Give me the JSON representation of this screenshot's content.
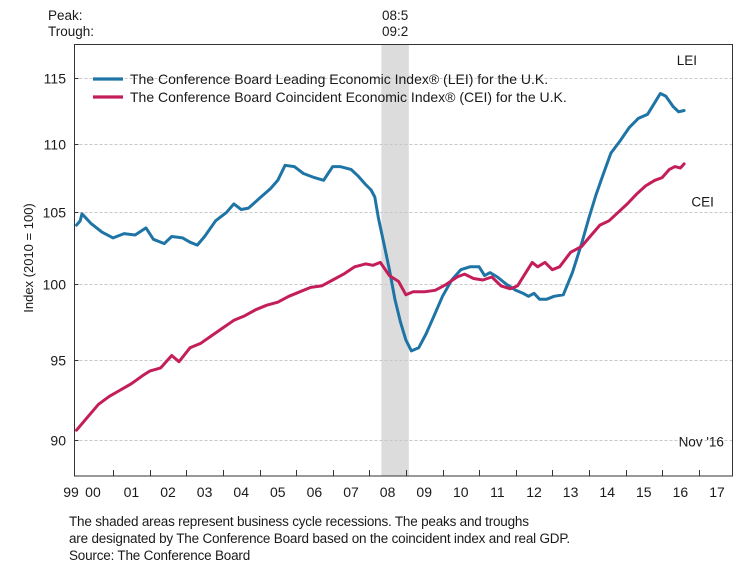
{
  "chart_data": {
    "type": "line",
    "title": "",
    "xlabel": "",
    "ylabel": "Index (2010 = 100)",
    "yscale": "log",
    "ylim": [
      88.2,
      118
    ],
    "xlim": [
      2000.0,
      2017.95
    ],
    "yticks": [
      90,
      95,
      100,
      105,
      110,
      115
    ],
    "ytick_labels": [
      "90",
      "95",
      "100",
      "105",
      "110",
      "115"
    ],
    "xtick_labels": [
      {
        "label": "99",
        "year": 1999.85
      },
      {
        "label": "00",
        "year": 2000.45
      },
      {
        "label": "01",
        "year": 2001.5
      },
      {
        "label": "02",
        "year": 2002.5
      },
      {
        "label": "03",
        "year": 2003.5
      },
      {
        "label": "04",
        "year": 2004.5
      },
      {
        "label": "05",
        "year": 2005.5
      },
      {
        "label": "06",
        "year": 2006.5
      },
      {
        "label": "07",
        "year": 2007.5
      },
      {
        "label": "08",
        "year": 2008.5
      },
      {
        "label": "09",
        "year": 2009.5
      },
      {
        "label": "10",
        "year": 2010.5
      },
      {
        "label": "11",
        "year": 2011.5
      },
      {
        "label": "12",
        "year": 2012.5
      },
      {
        "label": "13",
        "year": 2013.5
      },
      {
        "label": "14",
        "year": 2014.5
      },
      {
        "label": "15",
        "year": 2015.5
      },
      {
        "label": "16",
        "year": 2016.5
      },
      {
        "label": "17",
        "year": 2017.5
      }
    ],
    "xticks": [
      2001,
      2002,
      2003,
      2004,
      2005,
      2006,
      2007,
      2008,
      2009,
      2010,
      2011,
      2012,
      2013,
      2014,
      2015,
      2016,
      2017
    ],
    "grid": true,
    "legend_position": "top-left",
    "recessions": [
      {
        "start": 2008.33,
        "end": 2009.08,
        "peak_label": "08:5",
        "trough_label": "09:2"
      }
    ],
    "recession_header": {
      "peak": "Peak:",
      "trough": "Trough:"
    },
    "series": [
      {
        "name": "The Conference Board Leading Economic Index® (LEI) for the U.K.",
        "short_label": "LEI",
        "color": "#1f74a6",
        "x": [
          2000.0,
          2000.1,
          2000.15,
          2000.4,
          2000.7,
          2001.0,
          2001.3,
          2001.6,
          2001.9,
          2002.1,
          2002.4,
          2002.6,
          2002.9,
          2003.1,
          2003.3,
          2003.5,
          2003.8,
          2004.1,
          2004.3,
          2004.5,
          2004.7,
          2005.0,
          2005.3,
          2005.5,
          2005.7,
          2005.95,
          2006.2,
          2006.5,
          2006.75,
          2007.0,
          2007.2,
          2007.5,
          2007.7,
          2007.9,
          2008.05,
          2008.15,
          2008.25,
          2008.4,
          2008.55,
          2008.7,
          2008.85,
          2009.0,
          2009.15,
          2009.35,
          2009.55,
          2009.75,
          2010.0,
          2010.25,
          2010.5,
          2010.75,
          2011.0,
          2011.15,
          2011.3,
          2011.5,
          2011.75,
          2012.0,
          2012.2,
          2012.35,
          2012.5,
          2012.65,
          2012.85,
          2013.05,
          2013.3,
          2013.55,
          2013.8,
          2014.0,
          2014.2,
          2014.4,
          2014.6,
          2014.85,
          2015.1,
          2015.35,
          2015.6,
          2015.8,
          2015.95,
          2016.1,
          2016.3,
          2016.45,
          2016.6
        ],
        "values": [
          104.1,
          104.4,
          104.9,
          104.2,
          103.6,
          103.2,
          103.5,
          103.4,
          103.9,
          103.1,
          102.8,
          103.3,
          103.2,
          102.9,
          102.7,
          103.3,
          104.4,
          105.0,
          105.6,
          105.2,
          105.3,
          106.0,
          106.7,
          107.3,
          108.4,
          108.3,
          107.8,
          107.5,
          107.3,
          108.3,
          108.3,
          108.1,
          107.6,
          107.0,
          106.6,
          106.1,
          104.6,
          102.8,
          101.0,
          99.0,
          97.5,
          96.3,
          95.6,
          95.8,
          96.7,
          97.8,
          99.2,
          100.3,
          101.0,
          101.2,
          101.2,
          100.6,
          100.8,
          100.5,
          100.0,
          99.6,
          99.4,
          99.2,
          99.4,
          99.0,
          99.0,
          99.2,
          99.3,
          100.8,
          102.8,
          104.6,
          106.3,
          107.8,
          109.3,
          110.2,
          111.2,
          111.9,
          112.2,
          113.1,
          113.8,
          113.6,
          112.8,
          112.4,
          112.5
        ]
      },
      {
        "name": "The Conference Board Coincident Economic Index® (CEI) for the U.K.",
        "short_label": "CEI",
        "color": "#c41e5a",
        "x": [
          2000.0,
          2000.3,
          2000.6,
          2000.9,
          2001.2,
          2001.5,
          2001.8,
          2002.0,
          2002.3,
          2002.6,
          2002.8,
          2003.1,
          2003.4,
          2003.7,
          2004.0,
          2004.3,
          2004.6,
          2004.9,
          2005.2,
          2005.5,
          2005.8,
          2006.1,
          2006.4,
          2006.7,
          2007.0,
          2007.3,
          2007.6,
          2007.9,
          2008.1,
          2008.3,
          2008.55,
          2008.8,
          2009.0,
          2009.2,
          2009.5,
          2009.8,
          2010.1,
          2010.4,
          2010.6,
          2010.85,
          2011.1,
          2011.35,
          2011.6,
          2011.85,
          2012.05,
          2012.25,
          2012.45,
          2012.6,
          2012.8,
          2013.0,
          2013.2,
          2013.5,
          2013.8,
          2014.0,
          2014.3,
          2014.55,
          2014.8,
          2015.05,
          2015.3,
          2015.55,
          2015.8,
          2016.0,
          2016.2,
          2016.35,
          2016.5,
          2016.6
        ],
        "values": [
          90.6,
          91.4,
          92.2,
          92.7,
          93.1,
          93.5,
          94.0,
          94.3,
          94.5,
          95.3,
          94.9,
          95.8,
          96.1,
          96.6,
          97.1,
          97.6,
          97.9,
          98.3,
          98.6,
          98.8,
          99.2,
          99.5,
          99.8,
          99.9,
          100.3,
          100.7,
          101.2,
          101.4,
          101.3,
          101.5,
          100.6,
          100.2,
          99.3,
          99.5,
          99.5,
          99.6,
          100.0,
          100.5,
          100.7,
          100.4,
          100.3,
          100.5,
          99.9,
          99.7,
          99.9,
          100.7,
          101.5,
          101.2,
          101.5,
          101.0,
          101.2,
          102.2,
          102.6,
          103.2,
          104.1,
          104.4,
          105.0,
          105.6,
          106.3,
          106.9,
          107.3,
          107.5,
          108.1,
          108.3,
          108.2,
          108.5
        ]
      }
    ],
    "annotations": [
      {
        "text": "LEI",
        "year": 2016.4,
        "value": 116.0
      },
      {
        "text": "CEI",
        "year": 2016.8,
        "value": 105.4
      },
      {
        "text": "Nov '16",
        "year": 2016.45,
        "value": 89.6
      }
    ]
  },
  "footnote": {
    "line1": "The shaded areas represent business cycle recessions. The peaks and troughs",
    "line2": "are designated by The Conference Board based on the coincident index and real GDP.",
    "source": "Source: The Conference Board"
  }
}
